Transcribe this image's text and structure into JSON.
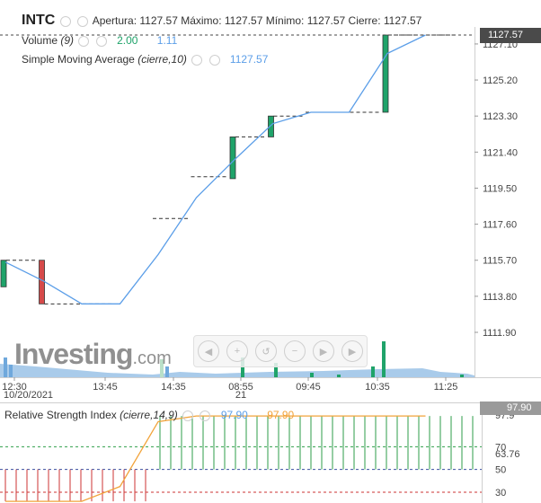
{
  "header": {
    "symbol": "INTC",
    "ohlc": "Apertura: 1127.57 Máximo: 1127.57 Mínimo: 1127.57 Cierre: 1127.57"
  },
  "volume_legend": {
    "name": "Volume",
    "param": "(9)",
    "value1": "2.00",
    "value2": "1.11"
  },
  "sma_legend": {
    "name": "Simple Moving Average",
    "param": "(cierre,10)",
    "value": "1127.57"
  },
  "rsi_legend": {
    "name": "Relative Strength Index",
    "param": "(cierre,14,9)",
    "value1": "97.90",
    "value2": "97.90"
  },
  "price_label": "1127.57",
  "rsi_label": "97.90",
  "logo": {
    "main": "Investing",
    "suffix": ".com"
  },
  "colors": {
    "up": "#1fa36a",
    "down": "#d64a4a",
    "sma": "#5b9ee8",
    "rsi": "#f2a33a",
    "volume": "#6fa8dc"
  },
  "chart_data": {
    "type": "candlestick",
    "y_ticks": [
      "1127.10",
      "1125.20",
      "1123.30",
      "1121.40",
      "1119.50",
      "1117.60",
      "1115.70",
      "1113.80",
      "1111.90"
    ],
    "ylim": [
      1111.9,
      1127.57
    ],
    "x_ticks": [
      "12:30",
      "13:45",
      "14:35",
      "08:55",
      "09:45",
      "10:35",
      "11:25"
    ],
    "date_labels": [
      "10/20/2021",
      "21"
    ],
    "candles": [
      {
        "x": 0,
        "open": 1114.3,
        "close": 1115.7,
        "high": 1115.7,
        "low": 1114.3
      },
      {
        "x": 1,
        "open": 1115.7,
        "close": 1113.4,
        "high": 1115.7,
        "low": 1113.4
      },
      {
        "x": 2,
        "open": 1113.4,
        "close": 1113.4,
        "high": 1113.4,
        "low": 1113.4
      },
      {
        "x": 4,
        "open": 1117.9,
        "close": 1117.9,
        "high": 1117.9,
        "low": 1117.9
      },
      {
        "x": 5,
        "open": 1120.1,
        "close": 1120.1,
        "high": 1120.1,
        "low": 1120.1
      },
      {
        "x": 6,
        "open": 1120.0,
        "close": 1122.2,
        "high": 1122.2,
        "low": 1120.0
      },
      {
        "x": 7,
        "open": 1122.2,
        "close": 1123.3,
        "high": 1123.3,
        "low": 1122.2
      },
      {
        "x": 8,
        "open": 1123.5,
        "close": 1123.5,
        "high": 1123.5,
        "low": 1123.5
      },
      {
        "x": 9,
        "open": 1123.5,
        "close": 1123.5,
        "high": 1123.5,
        "low": 1123.5
      },
      {
        "x": 10,
        "open": 1123.5,
        "close": 1127.57,
        "high": 1127.57,
        "low": 1123.5
      },
      {
        "x": 11,
        "open": 1127.57,
        "close": 1127.57,
        "high": 1127.57,
        "low": 1127.57
      }
    ],
    "sma": [
      1115.6,
      1114.6,
      1113.4,
      1113.4,
      1116.0,
      1119.0,
      1121.0,
      1122.9,
      1123.5,
      1123.5,
      1126.6,
      1127.57
    ],
    "rsi_ticks": [
      "97.9",
      "70",
      "63.76",
      "50",
      "30"
    ],
    "rsi": [
      22,
      22,
      22,
      35,
      92,
      97,
      97,
      97,
      97,
      97,
      97,
      97
    ]
  }
}
